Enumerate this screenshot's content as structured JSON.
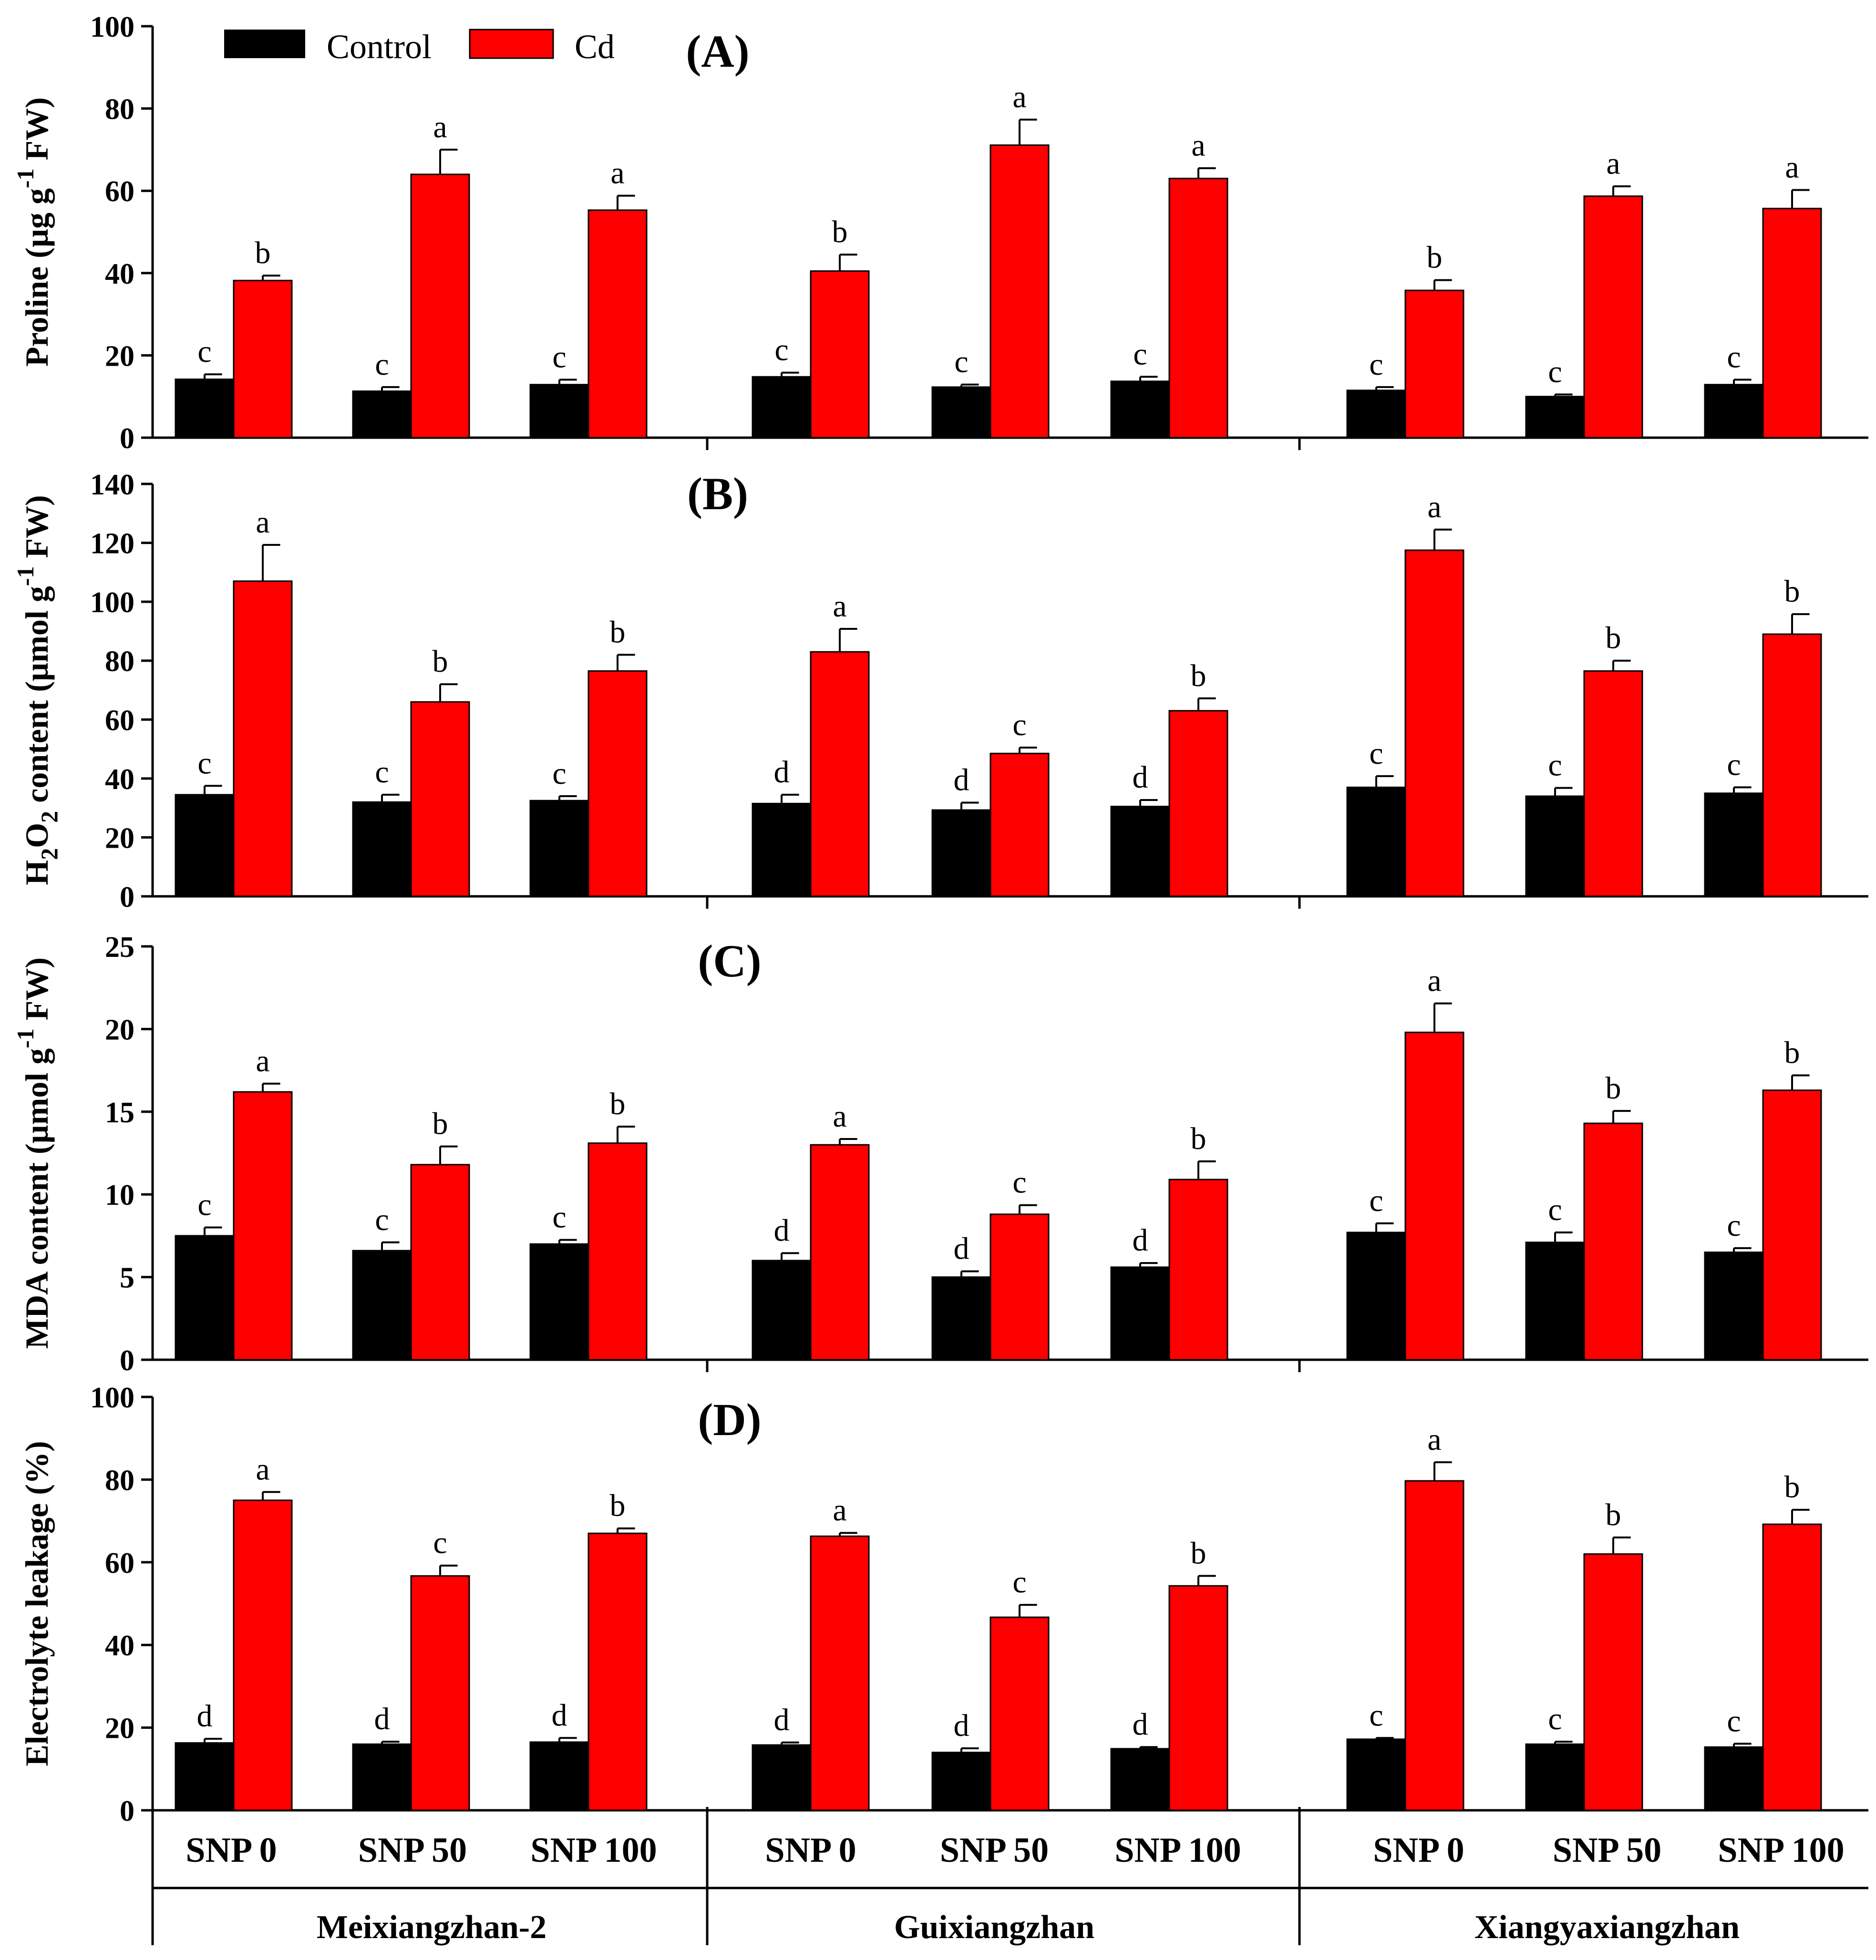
{
  "figure": {
    "colors": {
      "control": "#000000",
      "cd": "#ff0000",
      "axis": "#000000"
    },
    "legend": {
      "control_label": "Control",
      "cd_label": "Cd",
      "placement": "top-left"
    },
    "x_axis": {
      "treatments": [
        "SNP 0",
        "SNP 50",
        "SNP 100"
      ],
      "cultivars": [
        "Meixiangzhan-2",
        "Guixiangzhan",
        "Xiangyaxiangzhan"
      ]
    }
  },
  "chart_data": [
    {
      "type": "bar",
      "panel_label": "(A)",
      "ylabel_parts": [
        "Proline (µg g",
        "-1",
        " FW)"
      ],
      "ylim": [
        0,
        100
      ],
      "yticks": [
        "0",
        "20",
        "40",
        "60",
        "80",
        "100"
      ],
      "categories": [
        "SNP 0",
        "SNP 50",
        "SNP 100",
        "SNP 0",
        "SNP 50",
        "SNP 100",
        "SNP 0",
        "SNP 50",
        "SNP 100"
      ],
      "series": [
        {
          "name": "Control",
          "values": [
            14.2,
            11.3,
            12.9,
            14.8,
            12.3,
            13.7,
            11.5,
            10.0,
            12.9
          ],
          "errors": [
            1.2,
            1.0,
            1.2,
            1.0,
            0.6,
            1.1,
            0.8,
            0.5,
            1.2
          ],
          "letters": [
            "c",
            "c",
            "c",
            "c",
            "c",
            "c",
            "c",
            "c",
            "c"
          ]
        },
        {
          "name": "Cd",
          "values": [
            38.2,
            64.0,
            55.3,
            40.5,
            71.1,
            63.0,
            35.8,
            58.7,
            55.7
          ],
          "errors": [
            1.2,
            6.0,
            3.5,
            4.0,
            6.2,
            2.5,
            2.5,
            2.4,
            4.5
          ],
          "letters": [
            "b",
            "a",
            "a",
            "b",
            "a",
            "a",
            "b",
            "a",
            "a"
          ]
        }
      ]
    },
    {
      "type": "bar",
      "panel_label": "(B)",
      "ylabel_parts": [
        "H",
        "2",
        "O",
        "2",
        " content (µmol g",
        "-1",
        " FW)"
      ],
      "ylim": [
        0,
        140
      ],
      "yticks": [
        "0",
        "20",
        "40",
        "60",
        "80",
        "100",
        "120",
        "140"
      ],
      "categories": [
        "SNP 0",
        "SNP 50",
        "SNP 100",
        "SNP 0",
        "SNP 50",
        "SNP 100",
        "SNP 0",
        "SNP 50",
        "SNP 100"
      ],
      "series": [
        {
          "name": "Control",
          "values": [
            34.5,
            32.0,
            32.5,
            31.5,
            29.3,
            30.5,
            37.0,
            34.0,
            35.0
          ],
          "errors": [
            3.0,
            2.5,
            1.5,
            3.0,
            2.5,
            2.2,
            3.8,
            2.8,
            2.0
          ],
          "letters": [
            "c",
            "c",
            "c",
            "d",
            "d",
            "d",
            "c",
            "c",
            "c"
          ]
        },
        {
          "name": "Cd",
          "values": [
            107.0,
            66.0,
            76.5,
            83.0,
            48.5,
            63.0,
            117.5,
            76.5,
            89.0
          ],
          "errors": [
            12.3,
            6.0,
            5.5,
            7.8,
            2.0,
            4.2,
            7.0,
            3.5,
            6.8
          ],
          "letters": [
            "a",
            "b",
            "b",
            "a",
            "c",
            "b",
            "a",
            "b",
            "b"
          ]
        }
      ]
    },
    {
      "type": "bar",
      "panel_label": "(C)",
      "ylabel_parts": [
        "MDA content (µmol g",
        "-1",
        " FW)"
      ],
      "ylim": [
        0,
        25
      ],
      "yticks": [
        "0",
        "5",
        "10",
        "15",
        "20",
        "25"
      ],
      "categories": [
        "SNP 0",
        "SNP 50",
        "SNP 100",
        "SNP 0",
        "SNP 50",
        "SNP 100",
        "SNP 0",
        "SNP 50",
        "SNP 100"
      ],
      "series": [
        {
          "name": "Control",
          "values": [
            7.5,
            6.6,
            7.0,
            6.0,
            5.0,
            5.6,
            7.7,
            7.1,
            6.5
          ],
          "errors": [
            0.5,
            0.5,
            0.25,
            0.45,
            0.35,
            0.25,
            0.55,
            0.6,
            0.25
          ],
          "letters": [
            "c",
            "c",
            "c",
            "d",
            "d",
            "d",
            "c",
            "c",
            "c"
          ]
        },
        {
          "name": "Cd",
          "values": [
            16.2,
            11.8,
            13.1,
            13.0,
            8.8,
            10.9,
            19.8,
            14.3,
            16.3
          ],
          "errors": [
            0.5,
            1.1,
            1.0,
            0.35,
            0.55,
            1.1,
            1.75,
            0.75,
            0.9
          ],
          "letters": [
            "a",
            "b",
            "b",
            "a",
            "c",
            "b",
            "a",
            "b",
            "b"
          ]
        }
      ]
    },
    {
      "type": "bar",
      "panel_label": "(D)",
      "ylabel_parts": [
        "Electrolyte leakage (%)"
      ],
      "ylim": [
        0,
        100
      ],
      "yticks": [
        "0",
        "20",
        "40",
        "60",
        "80",
        "100"
      ],
      "categories": [
        "SNP 0",
        "SNP 50",
        "SNP 100",
        "SNP 0",
        "SNP 50",
        "SNP 100",
        "SNP 0",
        "SNP 50",
        "SNP 100"
      ],
      "series": [
        {
          "name": "Control",
          "values": [
            16.3,
            16.0,
            16.5,
            15.8,
            14.0,
            14.9,
            17.2,
            16.0,
            15.3
          ],
          "errors": [
            1.0,
            0.6,
            1.0,
            0.6,
            1.0,
            0.4,
            0.3,
            0.6,
            0.8
          ],
          "letters": [
            "d",
            "d",
            "d",
            "d",
            "d",
            "d",
            "c",
            "c",
            "c"
          ]
        },
        {
          "name": "Cd",
          "values": [
            75.0,
            56.7,
            67.0,
            66.3,
            46.7,
            54.3,
            79.7,
            62.0,
            69.2
          ],
          "errors": [
            2.0,
            2.5,
            1.2,
            0.8,
            3.0,
            2.4,
            4.5,
            4.0,
            3.5
          ],
          "letters": [
            "a",
            "c",
            "b",
            "a",
            "c",
            "b",
            "a",
            "b",
            "b"
          ]
        }
      ]
    }
  ]
}
